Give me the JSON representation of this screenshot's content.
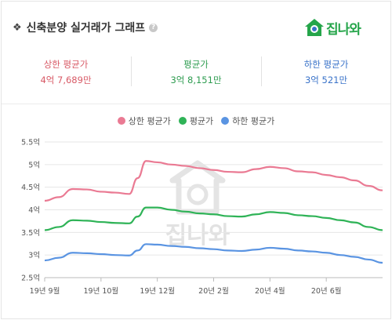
{
  "header": {
    "bullet": "❖",
    "title": "신축분양 실거래가 그래프",
    "help": "?",
    "logo_text": "집나와"
  },
  "stats": [
    {
      "label": "상한 평균가",
      "value": "4억 7,689만",
      "color": "#d85a66"
    },
    {
      "label": "평균가",
      "value": "3억 8,151만",
      "color": "#2e9c50"
    },
    {
      "label": "하한 평균가",
      "value": "3억 521만",
      "color": "#3a73c9"
    }
  ],
  "watermark": "집나와",
  "chart_data": {
    "type": "line",
    "title": "",
    "xlabel": "",
    "ylabel": "",
    "x_ticks": [
      "19년 9월",
      "19년 10월",
      "19년 12월",
      "20년 2월",
      "20년 4월",
      "20년 6월"
    ],
    "y_ticks": [
      "2.5억",
      "3억",
      "3.5억",
      "4억",
      "4.5억",
      "5억",
      "5.5억"
    ],
    "ylim": [
      2.5,
      5.5
    ],
    "grid": true,
    "legend_position": "top-center",
    "series": [
      {
        "name": "상한 평균가",
        "color": "#ea7a93",
        "points": [
          [
            0,
            4.2
          ],
          [
            0.5,
            4.28
          ],
          [
            1,
            4.46
          ],
          [
            1.5,
            4.45
          ],
          [
            2,
            4.4
          ],
          [
            2.5,
            4.38
          ],
          [
            3,
            4.35
          ],
          [
            3.3,
            4.7
          ],
          [
            3.6,
            5.08
          ],
          [
            4,
            5.05
          ],
          [
            4.5,
            5.0
          ],
          [
            5,
            4.97
          ],
          [
            5.5,
            4.92
          ],
          [
            6,
            4.88
          ],
          [
            6.5,
            4.84
          ],
          [
            7,
            4.83
          ],
          [
            7.5,
            4.9
          ],
          [
            8,
            4.95
          ],
          [
            8.5,
            4.92
          ],
          [
            9,
            4.85
          ],
          [
            9.5,
            4.83
          ],
          [
            10,
            4.77
          ],
          [
            10.5,
            4.72
          ],
          [
            11,
            4.65
          ],
          [
            11.5,
            4.53
          ],
          [
            12,
            4.43
          ]
        ]
      },
      {
        "name": "평균가",
        "color": "#2fb357",
        "points": [
          [
            0,
            3.55
          ],
          [
            0.5,
            3.62
          ],
          [
            1,
            3.77
          ],
          [
            1.5,
            3.76
          ],
          [
            2,
            3.73
          ],
          [
            2.5,
            3.71
          ],
          [
            3,
            3.7
          ],
          [
            3.3,
            3.85
          ],
          [
            3.6,
            4.05
          ],
          [
            4,
            4.05
          ],
          [
            4.5,
            4.0
          ],
          [
            5,
            3.96
          ],
          [
            5.5,
            3.92
          ],
          [
            6,
            3.9
          ],
          [
            6.5,
            3.86
          ],
          [
            7,
            3.85
          ],
          [
            7.5,
            3.9
          ],
          [
            8,
            3.95
          ],
          [
            8.5,
            3.93
          ],
          [
            9,
            3.88
          ],
          [
            9.5,
            3.86
          ],
          [
            10,
            3.82
          ],
          [
            10.5,
            3.77
          ],
          [
            11,
            3.72
          ],
          [
            11.5,
            3.62
          ],
          [
            12,
            3.55
          ]
        ]
      },
      {
        "name": "하한 평균가",
        "color": "#5a94e2",
        "points": [
          [
            0,
            2.88
          ],
          [
            0.5,
            2.94
          ],
          [
            1,
            3.05
          ],
          [
            1.5,
            3.04
          ],
          [
            2,
            3.02
          ],
          [
            2.5,
            3.0
          ],
          [
            3,
            2.99
          ],
          [
            3.3,
            3.1
          ],
          [
            3.6,
            3.24
          ],
          [
            4,
            3.23
          ],
          [
            4.5,
            3.2
          ],
          [
            5,
            3.18
          ],
          [
            5.5,
            3.15
          ],
          [
            6,
            3.13
          ],
          [
            6.5,
            3.1
          ],
          [
            7,
            3.09
          ],
          [
            7.5,
            3.12
          ],
          [
            8,
            3.16
          ],
          [
            8.5,
            3.14
          ],
          [
            9,
            3.1
          ],
          [
            9.5,
            3.08
          ],
          [
            10,
            3.05
          ],
          [
            10.5,
            3.0
          ],
          [
            11,
            2.96
          ],
          [
            11.5,
            2.9
          ],
          [
            12,
            2.83
          ]
        ]
      }
    ]
  }
}
